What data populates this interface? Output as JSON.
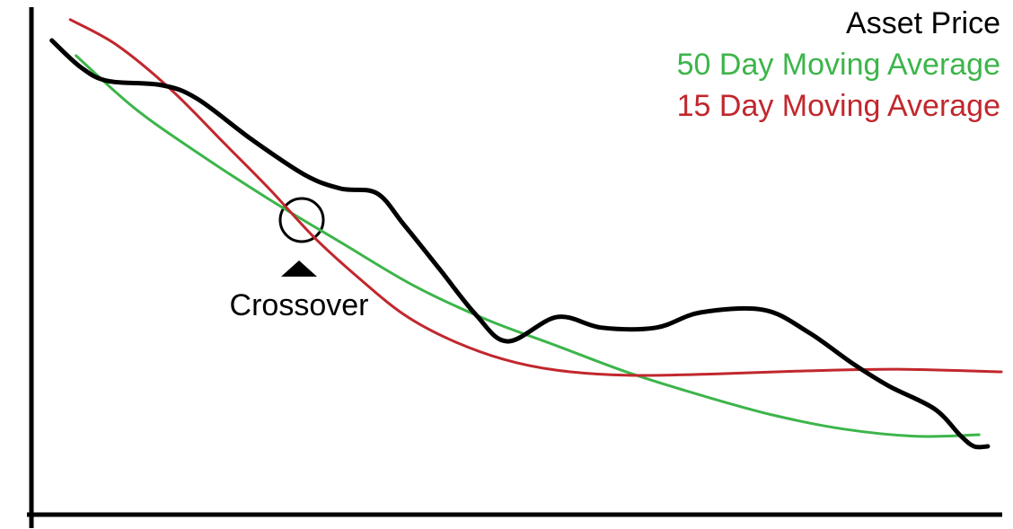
{
  "chart_data": {
    "type": "line",
    "xlim": [
      0,
      100
    ],
    "ylim": [
      0,
      100
    ],
    "legend": "upper right",
    "annotation": "Crossover",
    "series": [
      {
        "name": "Asset Price",
        "color": "#000000",
        "x": [
          2.1,
          5.1,
          7.9,
          13.4,
          17.1,
          22.7,
          28.2,
          31.9,
          35.6,
          38.4,
          42.1,
          45.8,
          49.1,
          54.2,
          58.8,
          64.4,
          69.0,
          75.5,
          80.1,
          84.7,
          88.4,
          93.1,
          95.8,
          97.2,
          98.6
        ],
        "values": [
          93.8,
          88.5,
          85.8,
          85.0,
          82.3,
          74.3,
          67.3,
          64.6,
          63.7,
          57.5,
          48.7,
          39.8,
          34.5,
          39.3,
          37.2,
          37.2,
          40.2,
          40.7,
          36.3,
          30.1,
          25.7,
          21.2,
          15.9,
          13.8,
          13.8
        ]
      },
      {
        "name": "50 Day Moving Average",
        "color": "#3cb54a",
        "x": [
          4.6,
          10.6,
          17.1,
          24.5,
          31.9,
          39.4,
          46.8,
          54.2,
          61.6,
          69.0,
          76.4,
          83.8,
          91.2,
          97.7
        ],
        "values": [
          90.8,
          80.5,
          71.7,
          62.5,
          54.0,
          45.5,
          38.9,
          33.6,
          28.3,
          23.9,
          20.0,
          17.2,
          15.8,
          16.1
        ]
      },
      {
        "name": "15 Day Moving Average",
        "color": "#c1272d",
        "x": [
          4.0,
          8.8,
          14.4,
          19.9,
          24.5,
          29.2,
          33.8,
          38.4,
          43.1,
          48.6,
          54.2,
          61.6,
          70.8,
          80.1,
          89.4,
          100
        ],
        "values": [
          97.9,
          92.9,
          84.1,
          73.5,
          64.6,
          54.9,
          46.9,
          39.8,
          34.9,
          31.0,
          28.8,
          27.8,
          28.1,
          28.7,
          29.0,
          28.5
        ]
      }
    ]
  }
}
